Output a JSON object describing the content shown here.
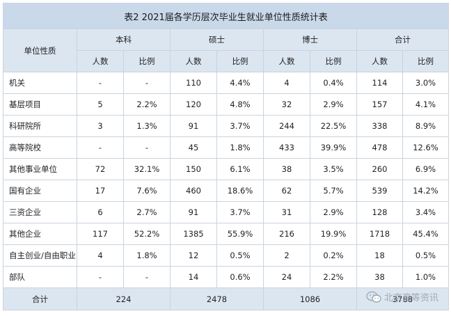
{
  "table": {
    "title": "表2  2021届各学历层次毕业生就业单位性质统计表",
    "unit_header": "单位性质",
    "groups": [
      "本科",
      "硕士",
      "博士",
      "合计"
    ],
    "sub_headers": [
      "人数",
      "比例",
      "人数",
      "比例",
      "人数",
      "比例",
      "人数",
      "比例"
    ],
    "rows": [
      {
        "name": "机关",
        "cells": [
          "-",
          "-",
          "110",
          "4.4%",
          "4",
          "0.4%",
          "114",
          "3.0%"
        ]
      },
      {
        "name": "基层项目",
        "cells": [
          "5",
          "2.2%",
          "120",
          "4.8%",
          "32",
          "2.9%",
          "157",
          "4.1%"
        ]
      },
      {
        "name": "科研院所",
        "cells": [
          "3",
          "1.3%",
          "91",
          "3.7%",
          "244",
          "22.5%",
          "338",
          "8.9%"
        ]
      },
      {
        "name": "高等院校",
        "cells": [
          "-",
          "-",
          "45",
          "1.8%",
          "433",
          "39.9%",
          "478",
          "12.6%"
        ]
      },
      {
        "name": "其他事业单位",
        "cells": [
          "72",
          "32.1%",
          "150",
          "6.1%",
          "38",
          "3.5%",
          "260",
          "6.9%"
        ]
      },
      {
        "name": "国有企业",
        "cells": [
          "17",
          "7.6%",
          "460",
          "18.6%",
          "62",
          "5.7%",
          "539",
          "14.2%"
        ]
      },
      {
        "name": "三资企业",
        "cells": [
          "6",
          "2.7%",
          "91",
          "3.7%",
          "31",
          "2.9%",
          "128",
          "3.4%"
        ]
      },
      {
        "name": "其他企业",
        "cells": [
          "117",
          "52.2%",
          "1385",
          "55.9%",
          "216",
          "19.9%",
          "1718",
          "45.4%"
        ]
      },
      {
        "name": "自主创业/自由职业",
        "cells": [
          "4",
          "1.8%",
          "12",
          "0.5%",
          "2",
          "0.2%",
          "18",
          "0.5%"
        ]
      },
      {
        "name": "部队",
        "cells": [
          "-",
          "-",
          "14",
          "0.6%",
          "24",
          "2.2%",
          "38",
          "1.0%"
        ]
      }
    ],
    "total": {
      "label": "合计",
      "values": [
        "224",
        "2478",
        "1086",
        "3788"
      ]
    }
  },
  "watermark": {
    "text": "北京高等资讯",
    "icon": "wechat-icon"
  }
}
